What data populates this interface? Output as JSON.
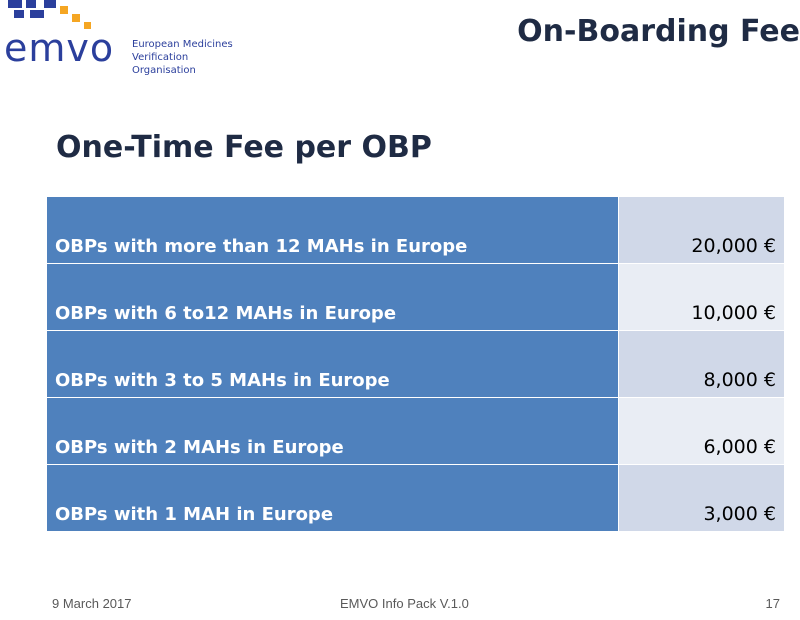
{
  "logo": {
    "wordmark": "emvo",
    "org_line1": "European Medicines",
    "org_line2": "Verification Organisation"
  },
  "header": {
    "title": "On-Boarding Fee"
  },
  "main": {
    "title": "One-Time Fee per OBP",
    "rows": [
      {
        "label": "OBPs with more than 12 MAHs in Europe",
        "amount": "20,000 €"
      },
      {
        "label": "OBPs with 6 to12 MAHs in Europe",
        "amount": "10,000 €"
      },
      {
        "label": "OBPs with 3 to 5 MAHs in Europe",
        "amount": "8,000 €"
      },
      {
        "label": "OBPs with 2 MAHs in Europe",
        "amount": "6,000 €"
      },
      {
        "label": "OBPs with 1 MAH in Europe",
        "amount": "3,000 €"
      }
    ]
  },
  "footer": {
    "date": "9 March 2017",
    "doc_title": "EMVO Info Pack V.1.0",
    "page": "17"
  },
  "colors": {
    "label_cell": "#4f81bd",
    "amount_cell_dark": "#d0d8e8",
    "amount_cell_light": "#e9edf4",
    "logo_blue": "#2b3f9c",
    "logo_orange": "#f5a623"
  }
}
